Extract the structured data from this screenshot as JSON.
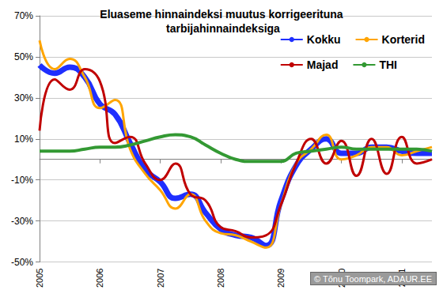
{
  "chart_data": {
    "type": "line",
    "title": "Eluaseme hinnaindeksi muutus korrigeerituna tarbijahinnaindeksiga",
    "annotation": "© Tõnu Toompark, ADAUR.EE",
    "categories": [
      "2005",
      null,
      null,
      null,
      "2006",
      null,
      null,
      null,
      "2007",
      null,
      null,
      null,
      "2008",
      null,
      null,
      null,
      "2009",
      null,
      null,
      null,
      "2010",
      null,
      null,
      null,
      "2011",
      null,
      null
    ],
    "series": [
      {
        "name": "Kokku",
        "color": "#1f2fff",
        "values": [
          46,
          42,
          45,
          40,
          27,
          22,
          8,
          -5,
          -11,
          -19,
          -17,
          -26,
          -34,
          -37,
          -38,
          -42,
          -20,
          -3,
          5,
          10,
          3,
          3,
          6,
          6,
          4,
          3,
          3
        ]
      },
      {
        "name": "Korterid",
        "color": "#ffa500",
        "values": [
          58,
          44,
          49,
          40,
          25,
          29,
          5,
          -7,
          -15,
          -24,
          -17,
          -30,
          -36,
          -37,
          -40,
          -43,
          -22,
          -2,
          5,
          12,
          0,
          2,
          6,
          6,
          2,
          4,
          6
        ]
      },
      {
        "name": "Majad",
        "color": "#c00000",
        "values": [
          14,
          39,
          34,
          44,
          38,
          8,
          11,
          -2,
          -10,
          -2,
          -17,
          -20,
          -33,
          -35,
          -38,
          -37,
          -22,
          -2,
          10,
          -2,
          9,
          -8,
          10,
          -7,
          11,
          -2,
          0
        ]
      },
      {
        "name": "THI",
        "color": "#339933",
        "values": [
          4,
          4,
          4,
          5,
          6,
          6,
          7,
          9,
          11,
          12,
          11,
          7,
          3,
          0,
          -1,
          -1,
          -1,
          3,
          4,
          5,
          6,
          5,
          5,
          5,
          5,
          5,
          4
        ]
      }
    ],
    "ylim": [
      -50,
      70
    ],
    "yticks": [
      {
        "value": -50,
        "label": "-50%"
      },
      {
        "value": -30,
        "label": "-30%"
      },
      {
        "value": -10,
        "label": "-10%"
      },
      {
        "value": 10,
        "label": "10%"
      },
      {
        "value": 30,
        "label": "30%"
      },
      {
        "value": 50,
        "label": "50%"
      },
      {
        "value": 70,
        "label": "70%"
      }
    ],
    "grid": true,
    "legend": "upper right"
  }
}
